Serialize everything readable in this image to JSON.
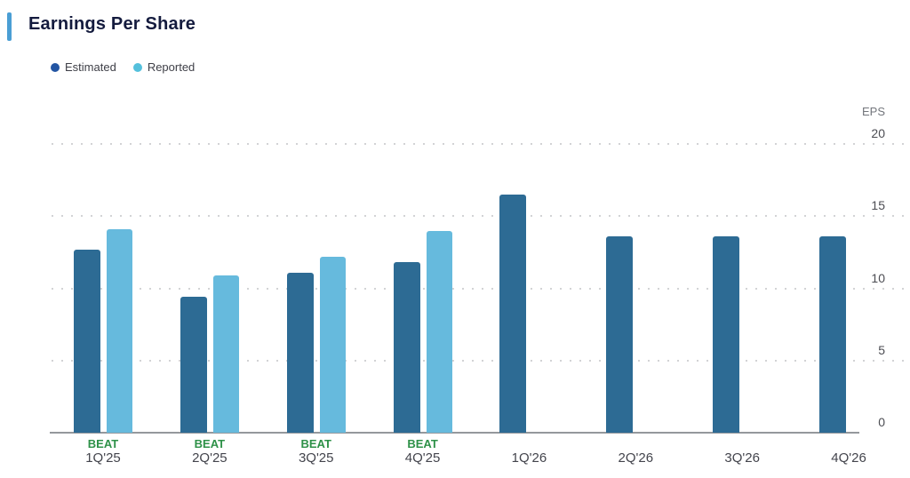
{
  "title": "Earnings Per Share",
  "legend": {
    "items": [
      {
        "label": "Estimated",
        "dot_color": "#2355a3"
      },
      {
        "label": "Reported",
        "dot_color": "#54c0dc"
      }
    ]
  },
  "colors": {
    "accent_bar": "#4a9ed4",
    "title_text": "#141b3e",
    "estimated_bar": "#2d6b94",
    "reported_bar": "#66badd",
    "beat_green": "#2e9148",
    "axis_line": "#95989c",
    "gridline": "#d2d3d5"
  },
  "chart_data": {
    "type": "bar",
    "title": "Earnings Per Share",
    "xlabel": "",
    "ylabel": "EPS",
    "categories": [
      "1Q'25",
      "2Q'25",
      "3Q'25",
      "4Q'25",
      "1Q'26",
      "2Q'26",
      "3Q'26",
      "4Q'26"
    ],
    "series": [
      {
        "name": "Estimated",
        "color": "#2d6b94",
        "values": [
          12.7,
          9.4,
          11.1,
          11.8,
          16.5,
          13.6,
          13.6,
          13.6
        ]
      },
      {
        "name": "Reported",
        "color": "#66badd",
        "values": [
          14.1,
          10.9,
          12.2,
          14.0,
          null,
          null,
          null,
          null
        ]
      }
    ],
    "beat_labels": [
      "BEAT",
      "BEAT",
      "BEAT",
      "BEAT",
      null,
      null,
      null,
      null
    ],
    "yticks": [
      0,
      5,
      10,
      15,
      20
    ],
    "ylim": [
      0,
      20
    ],
    "grid": "horizontal-dotted",
    "legend_position": "top-left",
    "yaxis_side": "right"
  }
}
